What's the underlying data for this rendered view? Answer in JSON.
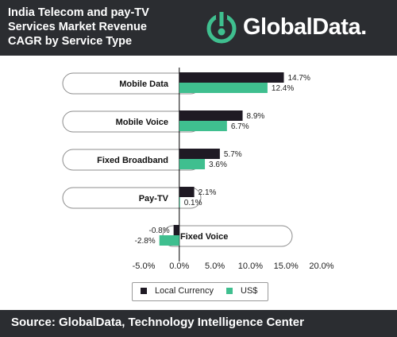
{
  "header": {
    "title_lines": [
      "India Telecom and pay-TV",
      "Services Market Revenue",
      "CAGR by Service Type"
    ],
    "logo_text": "GlobalData."
  },
  "footer": {
    "source": "Source: GlobalData, Technology Intelligence Center"
  },
  "colors": {
    "header_bg": "#2b2d31",
    "local": "#1f1a24",
    "usd": "#3fbf8f",
    "pill_border": "#8c8c8c"
  },
  "chart_data": {
    "type": "bar",
    "orientation": "horizontal",
    "categories": [
      "Mobile Data",
      "Mobile Voice",
      "Fixed Broadband",
      "Pay-TV",
      "Fixed Voice"
    ],
    "series": [
      {
        "name": "Local Currency",
        "values": [
          14.7,
          8.9,
          5.7,
          2.1,
          -0.8
        ],
        "labels": [
          "14.7%",
          "8.9%",
          "5.7%",
          "2.1%",
          "-0.8%"
        ]
      },
      {
        "name": "US$",
        "values": [
          12.4,
          6.7,
          3.6,
          0.1,
          -2.8
        ],
        "labels": [
          "12.4%",
          "6.7%",
          "3.6%",
          "0.1%",
          "-2.8%"
        ]
      }
    ],
    "xlim": [
      -5.0,
      20.0
    ],
    "ticks": [
      -5.0,
      0.0,
      5.0,
      10.0,
      15.0,
      20.0
    ],
    "tick_labels": [
      "-5.0%",
      "0.0%",
      "5.0%",
      "10.0%",
      "15.0%",
      "20.0%"
    ],
    "legend_position": "bottom",
    "grid": false
  }
}
